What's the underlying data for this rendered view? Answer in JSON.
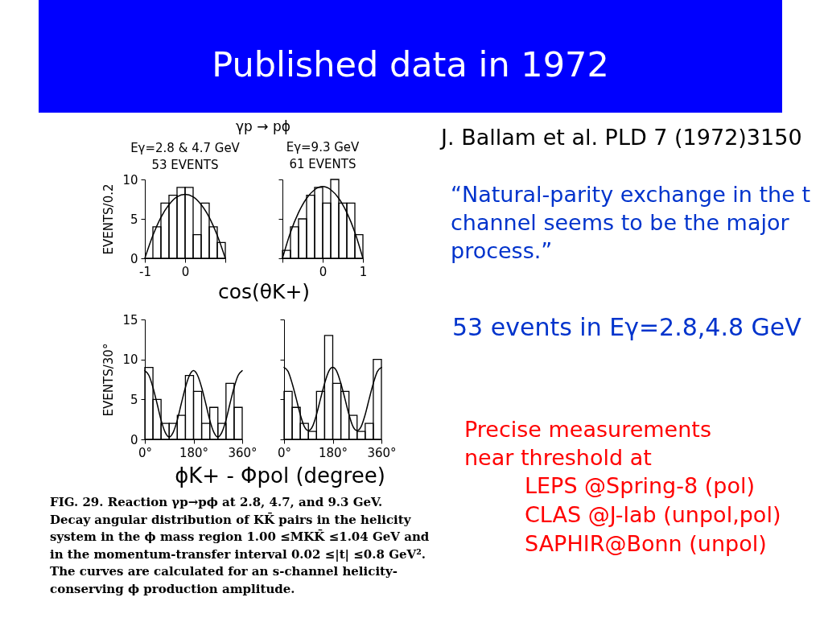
{
  "chart_data": [
    {
      "type": "other",
      "title": "Published data in 1972",
      "annotations": [
        "J. Ballam et al. PLD 7 (1972)3150",
        "“Natural-parity exchange in the t\nchannel seems to be the major\nprocess.”",
        "53 events in Eγ=2.8,4.8 GeV",
        "Precise measurements\nnear threshold at",
        "LEPS @Spring-8 (pol)\nCLAS @J-lab (unpol,pol)\nSAPHIR@Bonn (unpol)",
        "FIG. 29.  Reaction γp→pϕ at 2.8, 4.7, and 9.3 GeV.\nDecay angular distribution of KK̄ pairs in the helicity\nsystem in the ϕ mass region 1.00 ≤MKK̄ ≤1.04 GeV and\nin the momentum-transfer interval 0.02 ≤|t| ≤0.8 GeV².\nThe curves are calculated for an s-channel helicity-\nconserving ϕ production amplitude."
      ]
    },
    {
      "type": "histogram",
      "title": "Eγ=2.8 & 4.7 GeV",
      "subtitle": "53 EVENTS",
      "ylabel": "EVENTS/0.2",
      "xlabel": "cos(θK+)",
      "annotations": [
        "γp → pϕ"
      ],
      "xlim": [
        -1,
        1
      ],
      "ylim": [
        0,
        10
      ],
      "xticks": [
        -1,
        0,
        {
          "value": 1,
          "label": null
        }
      ],
      "yticks": [
        0,
        5,
        10
      ],
      "series": [
        {
          "type": "histogram",
          "color": "#000000",
          "bins": [
            -1,
            -0.8,
            -0.6,
            -0.4,
            -0.2,
            0,
            0.2,
            0.4,
            0.6,
            0.8,
            1
          ],
          "values": [
            0,
            4,
            7,
            8,
            9,
            9,
            3,
            7,
            4,
            2
          ]
        },
        {
          "type": "line",
          "color": "#000000",
          "x": [
            -1,
            -0.8,
            -0.6,
            -0.4,
            -0.2,
            0,
            0.2,
            0.4,
            0.6,
            0.8,
            1
          ],
          "values": [
            0,
            2.9,
            5.2,
            6.8,
            7.8,
            8.1,
            7.8,
            6.8,
            5.2,
            2.9,
            0
          ]
        }
      ]
    },
    {
      "type": "histogram",
      "title": "Eγ=9.3 GeV",
      "subtitle": "61 EVENTS",
      "tick_labels": "x",
      "xlim": [
        -1,
        1
      ],
      "ylim": [
        0,
        10
      ],
      "xticks": [
        {
          "value": -1,
          "label": null
        },
        0,
        1
      ],
      "yticks": [
        0,
        5,
        10
      ],
      "series": [
        {
          "type": "histogram",
          "color": "#000000",
          "bins": [
            -1,
            -0.8,
            -0.6,
            -0.4,
            -0.2,
            0,
            0.2,
            0.4,
            0.6,
            0.8,
            1
          ],
          "values": [
            1,
            4,
            5,
            8,
            9,
            7,
            10,
            7,
            7,
            3
          ]
        },
        {
          "type": "line",
          "color": "#000000",
          "x": [
            -1,
            -0.8,
            -0.6,
            -0.4,
            -0.2,
            0,
            0.2,
            0.4,
            0.6,
            0.8,
            1
          ],
          "values": [
            0,
            3.3,
            5.8,
            7.6,
            8.7,
            9.1,
            8.7,
            7.6,
            5.8,
            3.3,
            0
          ]
        }
      ]
    },
    {
      "type": "histogram",
      "ylabel": "EVENTS/30°",
      "xlabel": "ϕK+ - Φpol (degree)",
      "xlim": [
        0,
        360
      ],
      "ylim": [
        0,
        15
      ],
      "xticks": [
        {
          "value": 0,
          "label": "0°"
        },
        {
          "value": 180,
          "label": "180°"
        },
        {
          "value": 360,
          "label": "360°"
        }
      ],
      "yticks": [
        0,
        5,
        10,
        15
      ],
      "series": [
        {
          "type": "histogram",
          "color": "#000000",
          "bins": [
            0,
            30,
            60,
            90,
            120,
            150,
            180,
            210,
            240,
            270,
            300,
            330,
            360
          ],
          "values": [
            9,
            5,
            2,
            2,
            3,
            8,
            6,
            2,
            4,
            2,
            7,
            4
          ]
        },
        {
          "type": "line",
          "color": "#000000",
          "x": [
            0,
            15,
            30,
            45,
            60,
            75,
            90,
            105,
            120,
            135,
            150,
            165,
            180,
            195,
            210,
            225,
            240,
            255,
            270,
            285,
            300,
            315,
            330,
            345,
            360
          ],
          "values": [
            8.6,
            8.0,
            6.5,
            4.5,
            2.4,
            0.9,
            0.3,
            0.9,
            2.4,
            4.5,
            6.5,
            8.0,
            8.6,
            8.0,
            6.5,
            4.5,
            2.4,
            0.9,
            0.3,
            0.9,
            2.4,
            4.5,
            6.5,
            8.0,
            8.6
          ]
        }
      ]
    },
    {
      "type": "histogram",
      "tick_labels": "x",
      "xlim": [
        0,
        360
      ],
      "ylim": [
        0,
        15
      ],
      "xticks": [
        {
          "value": 0,
          "label": "0°"
        },
        {
          "value": 180,
          "label": "180°"
        },
        {
          "value": 360,
          "label": "360°"
        }
      ],
      "yticks": [
        0,
        5,
        10,
        15
      ],
      "series": [
        {
          "type": "histogram",
          "color": "#000000",
          "bins": [
            0,
            30,
            60,
            90,
            120,
            150,
            180,
            210,
            240,
            270,
            300,
            330,
            360
          ],
          "values": [
            6,
            4,
            2,
            1,
            6,
            13,
            7,
            6,
            3,
            1,
            2,
            10
          ]
        },
        {
          "type": "line",
          "color": "#000000",
          "x": [
            0,
            15,
            30,
            45,
            60,
            75,
            90,
            105,
            120,
            135,
            150,
            165,
            180,
            195,
            210,
            225,
            240,
            255,
            270,
            285,
            300,
            315,
            330,
            345,
            360
          ],
          "values": [
            9.0,
            8.5,
            7.0,
            5.1,
            3.1,
            1.6,
            1.1,
            1.6,
            3.1,
            5.1,
            7.0,
            8.5,
            9.0,
            8.5,
            7.0,
            5.1,
            3.1,
            1.6,
            1.1,
            1.6,
            3.1,
            5.1,
            7.0,
            8.5,
            9.0
          ]
        }
      ]
    }
  ]
}
